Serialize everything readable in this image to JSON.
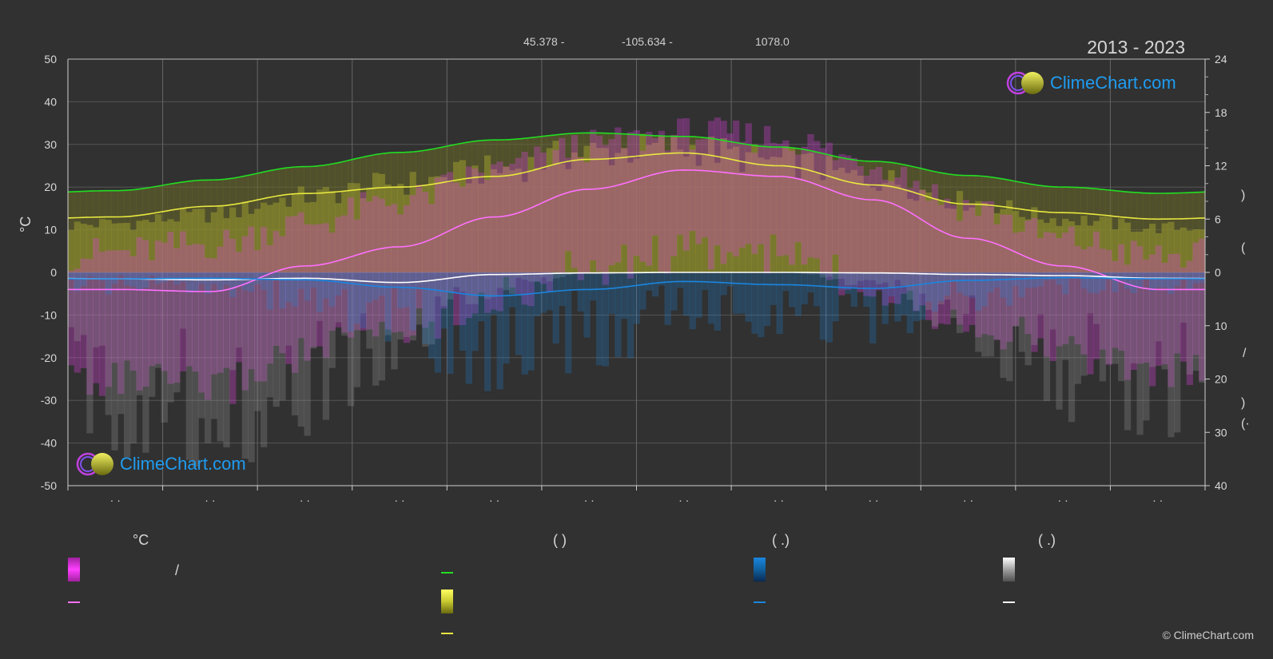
{
  "header": {
    "lat": "45.378 -",
    "lon": "-105.634 -",
    "elev": "1078.0",
    "years": "2013 - 2023"
  },
  "brand": {
    "name": "ClimeChart.com",
    "copyright": "© ClimeChart.com"
  },
  "colors": {
    "background": "#313131",
    "daylight": "#22dd22",
    "sunshine": "#e8e840",
    "temp_range": "#e040e0",
    "temp_mean": "#ff70ff",
    "rain": "#1a86e0",
    "snow": "#ffffff",
    "brand": "#1f9cf0"
  },
  "chart_data": {
    "type": "line",
    "left_axis": {
      "label": "°C",
      "ylim": [
        -50,
        50
      ],
      "ticks": [
        "50",
        "40",
        "30",
        "20",
        "10",
        "0",
        "-10",
        "-20",
        "-30",
        "-40",
        "-50"
      ]
    },
    "right_axis_top": {
      "ylim": [
        0,
        24
      ],
      "ticks": [
        "24",
        "18",
        "12",
        "6",
        "0"
      ],
      "label_glyphs": [
        ")",
        "("
      ]
    },
    "right_axis_bottom": {
      "ylim": [
        0,
        40
      ],
      "ticks": [
        "10",
        "20",
        "30",
        "40"
      ],
      "label_glyphs": [
        "/",
        ")",
        "(·"
      ]
    },
    "x_tick_labels": [
      "· ·",
      "· ·",
      "· ·",
      "· ·",
      "· ·",
      "· ·",
      "· ·",
      "· ·",
      "· ·",
      "· ·",
      "· ·",
      "· ·"
    ],
    "grid": true,
    "x_months": [
      0.5,
      1.5,
      2.5,
      3.5,
      4.5,
      5.5,
      6.5,
      7.5,
      8.5,
      9.5,
      10.5,
      11.5
    ],
    "series": [
      {
        "key": "daylight",
        "values": [
          9.2,
          10.4,
          11.9,
          13.5,
          14.9,
          15.7,
          15.3,
          14.1,
          12.5,
          10.9,
          9.6,
          8.9
        ]
      },
      {
        "key": "sunshine",
        "values": [
          13.0,
          15.5,
          18.5,
          20.0,
          22.5,
          26.5,
          28.0,
          25.0,
          20.5,
          16.0,
          14.0,
          12.5
        ]
      },
      {
        "key": "temp_mean",
        "values": [
          -4.0,
          -4.5,
          1.5,
          6.0,
          13.0,
          19.5,
          24.0,
          22.5,
          17.0,
          8.0,
          1.5,
          -4.0
        ]
      },
      {
        "key": "rain_mean",
        "values": [
          1.2,
          1.1,
          1.4,
          2.8,
          4.4,
          3.2,
          1.7,
          2.3,
          3.0,
          1.5,
          1.0,
          1.2
        ]
      },
      {
        "key": "snow_mean",
        "values": [
          1.2,
          1.4,
          1.1,
          1.9,
          0.4,
          0.1,
          0.0,
          0.0,
          0.1,
          0.4,
          0.6,
          1.1
        ]
      }
    ],
    "bands": {
      "temp_max": [
        3,
        5,
        10,
        15,
        22,
        28,
        31,
        30,
        24,
        14,
        6,
        2
      ],
      "temp_min": [
        -20,
        -22,
        -14,
        -8,
        -1,
        6,
        10,
        9,
        2,
        -6,
        -13,
        -18
      ],
      "sunshine_hours": [
        5.5,
        6.5,
        8.5,
        10.0,
        11.5,
        13.5,
        14.0,
        12.5,
        10.5,
        8.0,
        6.0,
        5.0
      ],
      "rain_mm": [
        2,
        2,
        4,
        8,
        12,
        10,
        6,
        6,
        7,
        4,
        2,
        2
      ],
      "snow_mm": [
        22,
        24,
        20,
        14,
        3,
        0,
        0,
        0,
        2,
        10,
        18,
        22
      ]
    }
  },
  "legend": {
    "heads": [
      "°C",
      "(          )",
      "(    .)",
      "(    .)"
    ],
    "slash": "/"
  }
}
